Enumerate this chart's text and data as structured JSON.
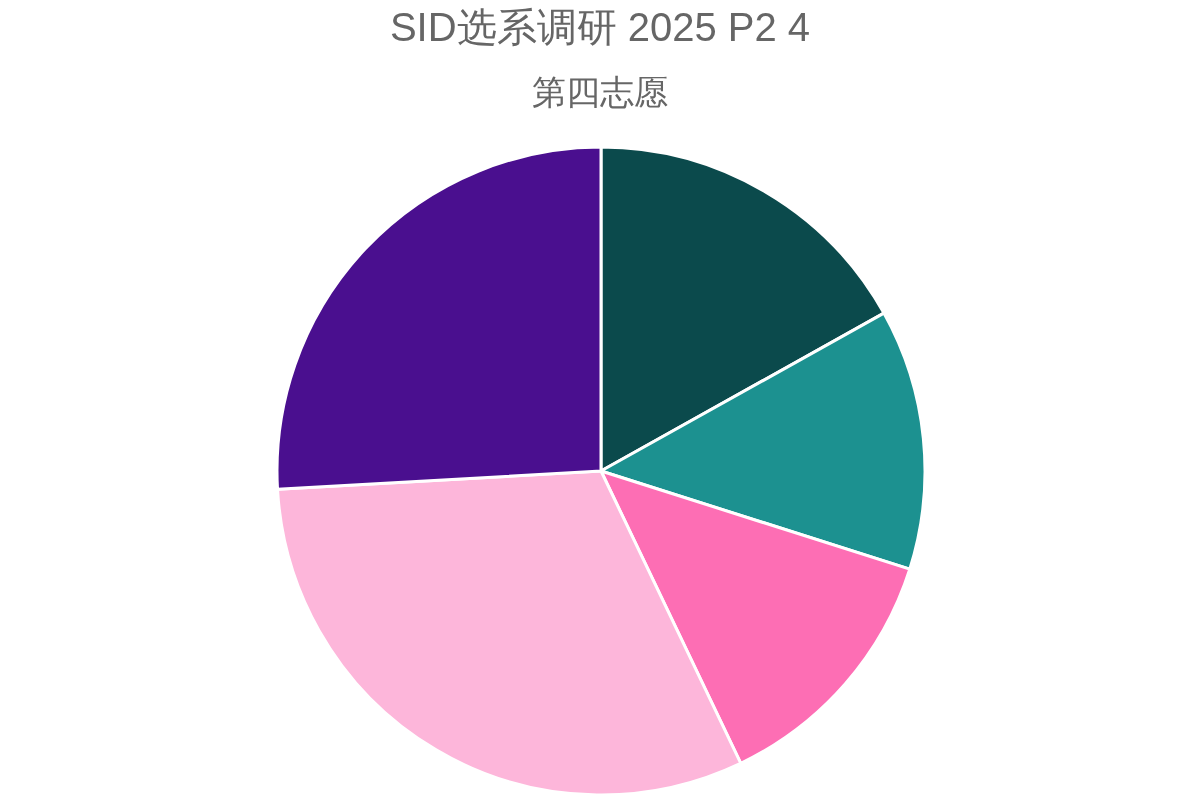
{
  "chart_data": {
    "type": "pie",
    "title": "SID选系调研 2025 P2 4",
    "subtitle": "第四志愿",
    "categories": [
      null,
      null,
      null,
      null,
      null
    ],
    "values": [
      16.9,
      13.0,
      13.0,
      31.2,
      25.9
    ],
    "colors": [
      "#0b4a4c",
      "#1c9190",
      "#fd6eb4",
      "#fdb6da",
      "#4a0f8f"
    ]
  }
}
